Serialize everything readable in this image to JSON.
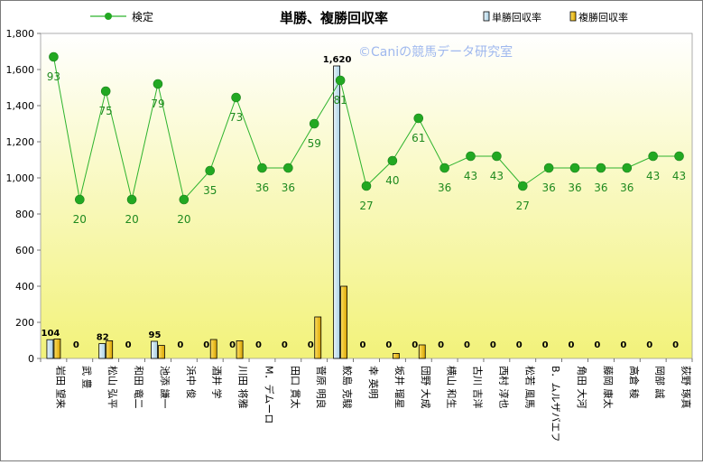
{
  "chart_data": {
    "type": "bar",
    "title": "単勝、複勝回収率",
    "watermark": "©Caniの競馬データ研究室",
    "ylim": [
      0,
      1800
    ],
    "yticks": [
      "0",
      "200",
      "400",
      "600",
      "800",
      "1,000",
      "1,200",
      "1,400",
      "1,600",
      "1,800"
    ],
    "ytick_values": [
      0,
      200,
      400,
      600,
      800,
      1000,
      1200,
      1400,
      1600,
      1800
    ],
    "grid": false,
    "categories": [
      "岩田 望来",
      "武 豊",
      "松山 弘平",
      "和田 竜二",
      "池添 謙一",
      "浜中 俊",
      "酒井 学",
      "川田 将雅",
      "M．デムーロ",
      "田口 貫太",
      "菅原 明良",
      "鮫島 克駿",
      "幸 英明",
      "坂井 瑠星",
      "団野 大成",
      "横山 和生",
      "古川 吉洋",
      "西村 淳也",
      "松若 風馬",
      "B．ムルザバエフ",
      "角田 大河",
      "藤岡 康太",
      "高倉 稜",
      "岡部 誠",
      "荻野 琢真"
    ],
    "series": [
      {
        "name": "単勝回収率",
        "kind": "bar",
        "color": "#cfe6f2",
        "values": [
          104,
          0,
          82,
          0,
          95,
          0,
          0,
          0,
          0,
          0,
          0,
          1620,
          0,
          0,
          0,
          0,
          0,
          0,
          0,
          0,
          0,
          0,
          0,
          0,
          0
        ]
      },
      {
        "name": "複勝回収率",
        "kind": "bar",
        "color": "#f2c200",
        "values": [
          108,
          0,
          98,
          0,
          72,
          0,
          105,
          98,
          0,
          0,
          230,
          400,
          0,
          28,
          75,
          0,
          0,
          0,
          0,
          0,
          0,
          0,
          0,
          0,
          0
        ]
      },
      {
        "name": "検定",
        "kind": "line",
        "color": "#2db32d",
        "values": [
          93,
          20,
          75,
          20,
          79,
          20,
          35,
          73,
          36,
          36,
          59,
          81,
          27,
          40,
          61,
          36,
          43,
          43,
          27,
          36,
          36,
          36,
          36,
          43,
          43
        ],
        "plot_values": [
          1670,
          880,
          1480,
          880,
          1520,
          880,
          1040,
          1445,
          1055,
          1055,
          1300,
          1540,
          955,
          1095,
          1330,
          1055,
          1120,
          1120,
          955,
          1055,
          1055,
          1055,
          1055,
          1120,
          1120
        ]
      }
    ],
    "bar_labels": [
      "104",
      "0",
      "82",
      "0",
      "95",
      "0",
      "0",
      "0",
      "0",
      "0",
      "0",
      "1,620",
      "0",
      "0",
      "0",
      "0",
      "0",
      "0",
      "0",
      "0",
      "0",
      "0",
      "0",
      "0",
      "0"
    ],
    "legend": {
      "placement": "top",
      "line_label": "検定",
      "bar1_label": "単勝回収率",
      "bar2_label": "複勝回収率"
    },
    "colors": {
      "plot_top": "#ffffff",
      "plot_bottom": "#f2f27a",
      "line": "#2db32d",
      "marker": "#22a822",
      "watermark": "#9fb8ee",
      "frame": "#7a7a7a"
    }
  }
}
